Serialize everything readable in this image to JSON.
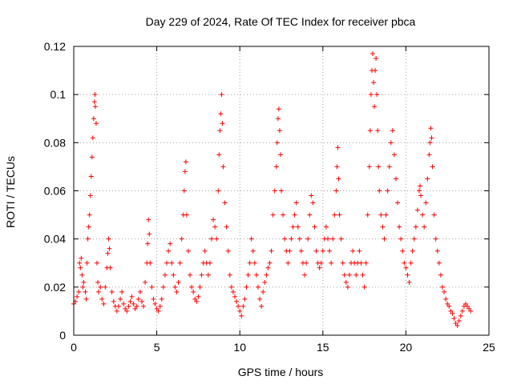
{
  "chart_data": {
    "type": "scatter",
    "title": "Day 229 of 2024, Rate Of TEC Index for receiver pbca",
    "xlabel": "GPS time / hours",
    "ylabel": "ROTI / TECUs",
    "xlim": [
      0,
      25
    ],
    "ylim": [
      0,
      0.12
    ],
    "xticks": [
      0,
      5,
      10,
      15,
      20,
      25
    ],
    "yticks": [
      0,
      0.02,
      0.04,
      0.06,
      0.08,
      0.1,
      0.12
    ],
    "xtick_labels": [
      "0",
      "5",
      "10",
      "15",
      "20",
      "25"
    ],
    "ytick_labels": [
      "0",
      "0.02",
      "0.04",
      "0.06",
      "0.08",
      "0.1",
      "0.12"
    ],
    "grid": true,
    "marker": "+",
    "color": "#ff0000",
    "series": [
      {
        "points": [
          [
            0.0,
            0.013
          ],
          [
            0.1,
            0.014
          ],
          [
            0.2,
            0.016
          ],
          [
            0.3,
            0.018
          ],
          [
            0.35,
            0.03
          ],
          [
            0.4,
            0.028
          ],
          [
            0.45,
            0.032
          ],
          [
            0.5,
            0.025
          ],
          [
            0.55,
            0.02
          ],
          [
            0.6,
            0.022
          ],
          [
            0.7,
            0.018
          ],
          [
            0.75,
            0.015
          ],
          [
            0.8,
            0.03
          ],
          [
            0.85,
            0.04
          ],
          [
            0.9,
            0.045
          ],
          [
            0.95,
            0.05
          ],
          [
            1.0,
            0.058
          ],
          [
            1.05,
            0.066
          ],
          [
            1.1,
            0.074
          ],
          [
            1.15,
            0.082
          ],
          [
            1.2,
            0.09
          ],
          [
            1.25,
            0.097
          ],
          [
            1.28,
            0.1
          ],
          [
            1.3,
            0.095
          ],
          [
            1.35,
            0.088
          ],
          [
            1.4,
            0.03
          ],
          [
            1.45,
            0.022
          ],
          [
            1.5,
            0.018
          ],
          [
            1.6,
            0.02
          ],
          [
            1.7,
            0.015
          ],
          [
            1.8,
            0.013
          ],
          [
            1.9,
            0.02
          ],
          [
            2.0,
            0.028
          ],
          [
            2.05,
            0.034
          ],
          [
            2.1,
            0.04
          ],
          [
            2.15,
            0.036
          ],
          [
            2.2,
            0.028
          ],
          [
            2.3,
            0.018
          ],
          [
            2.4,
            0.014
          ],
          [
            2.5,
            0.012
          ],
          [
            2.6,
            0.01
          ],
          [
            2.7,
            0.012
          ],
          [
            2.8,
            0.015
          ],
          [
            2.9,
            0.018
          ],
          [
            3.0,
            0.013
          ],
          [
            3.1,
            0.011
          ],
          [
            3.2,
            0.01
          ],
          [
            3.3,
            0.012
          ],
          [
            3.4,
            0.014
          ],
          [
            3.5,
            0.016
          ],
          [
            3.6,
            0.013
          ],
          [
            3.7,
            0.011
          ],
          [
            3.8,
            0.012
          ],
          [
            3.9,
            0.015
          ],
          [
            4.0,
            0.018
          ],
          [
            4.1,
            0.014
          ],
          [
            4.2,
            0.012
          ],
          [
            4.3,
            0.022
          ],
          [
            4.4,
            0.03
          ],
          [
            4.45,
            0.038
          ],
          [
            4.5,
            0.048
          ],
          [
            4.55,
            0.042
          ],
          [
            4.6,
            0.03
          ],
          [
            4.7,
            0.02
          ],
          [
            4.8,
            0.015
          ],
          [
            4.9,
            0.013
          ],
          [
            5.0,
            0.011
          ],
          [
            5.1,
            0.01
          ],
          [
            5.2,
            0.012
          ],
          [
            5.3,
            0.015
          ],
          [
            5.4,
            0.02
          ],
          [
            5.5,
            0.025
          ],
          [
            5.6,
            0.03
          ],
          [
            5.7,
            0.035
          ],
          [
            5.8,
            0.038
          ],
          [
            5.9,
            0.03
          ],
          [
            6.0,
            0.025
          ],
          [
            6.1,
            0.02
          ],
          [
            6.2,
            0.018
          ],
          [
            6.3,
            0.022
          ],
          [
            6.4,
            0.03
          ],
          [
            6.5,
            0.04
          ],
          [
            6.6,
            0.05
          ],
          [
            6.65,
            0.06
          ],
          [
            6.7,
            0.068
          ],
          [
            6.75,
            0.072
          ],
          [
            6.8,
            0.05
          ],
          [
            6.9,
            0.035
          ],
          [
            7.0,
            0.025
          ],
          [
            7.1,
            0.02
          ],
          [
            7.2,
            0.018
          ],
          [
            7.3,
            0.015
          ],
          [
            7.4,
            0.014
          ],
          [
            7.5,
            0.016
          ],
          [
            7.6,
            0.02
          ],
          [
            7.7,
            0.025
          ],
          [
            7.8,
            0.03
          ],
          [
            7.9,
            0.035
          ],
          [
            8.0,
            0.03
          ],
          [
            8.1,
            0.025
          ],
          [
            8.2,
            0.03
          ],
          [
            8.3,
            0.04
          ],
          [
            8.4,
            0.048
          ],
          [
            8.5,
            0.045
          ],
          [
            8.6,
            0.04
          ],
          [
            8.7,
            0.06
          ],
          [
            8.75,
            0.075
          ],
          [
            8.8,
            0.085
          ],
          [
            8.85,
            0.092
          ],
          [
            8.9,
            0.1
          ],
          [
            8.95,
            0.088
          ],
          [
            9.0,
            0.07
          ],
          [
            9.1,
            0.055
          ],
          [
            9.2,
            0.045
          ],
          [
            9.3,
            0.035
          ],
          [
            9.4,
            0.025
          ],
          [
            9.5,
            0.02
          ],
          [
            9.6,
            0.018
          ],
          [
            9.7,
            0.016
          ],
          [
            9.8,
            0.014
          ],
          [
            9.9,
            0.012
          ],
          [
            10.0,
            0.01
          ],
          [
            10.1,
            0.008
          ],
          [
            10.2,
            0.012
          ],
          [
            10.3,
            0.015
          ],
          [
            10.4,
            0.02
          ],
          [
            10.5,
            0.025
          ],
          [
            10.6,
            0.03
          ],
          [
            10.7,
            0.04
          ],
          [
            10.8,
            0.035
          ],
          [
            10.9,
            0.03
          ],
          [
            11.0,
            0.025
          ],
          [
            11.1,
            0.02
          ],
          [
            11.2,
            0.015
          ],
          [
            11.3,
            0.012
          ],
          [
            11.4,
            0.018
          ],
          [
            11.5,
            0.022
          ],
          [
            11.6,
            0.025
          ],
          [
            11.7,
            0.028
          ],
          [
            11.8,
            0.03
          ],
          [
            11.9,
            0.035
          ],
          [
            12.0,
            0.05
          ],
          [
            12.1,
            0.06
          ],
          [
            12.2,
            0.07
          ],
          [
            12.25,
            0.08
          ],
          [
            12.3,
            0.09
          ],
          [
            12.35,
            0.094
          ],
          [
            12.4,
            0.085
          ],
          [
            12.45,
            0.075
          ],
          [
            12.5,
            0.06
          ],
          [
            12.6,
            0.05
          ],
          [
            12.7,
            0.04
          ],
          [
            12.8,
            0.035
          ],
          [
            12.9,
            0.03
          ],
          [
            13.0,
            0.035
          ],
          [
            13.1,
            0.04
          ],
          [
            13.2,
            0.045
          ],
          [
            13.3,
            0.05
          ],
          [
            13.4,
            0.055
          ],
          [
            13.5,
            0.045
          ],
          [
            13.6,
            0.04
          ],
          [
            13.7,
            0.035
          ],
          [
            13.8,
            0.03
          ],
          [
            13.9,
            0.025
          ],
          [
            14.0,
            0.03
          ],
          [
            14.1,
            0.04
          ],
          [
            14.2,
            0.05
          ],
          [
            14.3,
            0.058
          ],
          [
            14.4,
            0.055
          ],
          [
            14.5,
            0.045
          ],
          [
            14.6,
            0.035
          ],
          [
            14.7,
            0.03
          ],
          [
            14.8,
            0.028
          ],
          [
            14.9,
            0.03
          ],
          [
            15.0,
            0.035
          ],
          [
            15.1,
            0.04
          ],
          [
            15.2,
            0.045
          ],
          [
            15.3,
            0.04
          ],
          [
            15.4,
            0.035
          ],
          [
            15.5,
            0.03
          ],
          [
            15.6,
            0.04
          ],
          [
            15.7,
            0.05
          ],
          [
            15.8,
            0.06
          ],
          [
            15.85,
            0.07
          ],
          [
            15.9,
            0.078
          ],
          [
            15.95,
            0.065
          ],
          [
            16.0,
            0.05
          ],
          [
            16.1,
            0.04
          ],
          [
            16.2,
            0.03
          ],
          [
            16.3,
            0.025
          ],
          [
            16.4,
            0.022
          ],
          [
            16.5,
            0.02
          ],
          [
            16.6,
            0.025
          ],
          [
            16.7,
            0.03
          ],
          [
            16.8,
            0.035
          ],
          [
            16.9,
            0.03
          ],
          [
            17.0,
            0.025
          ],
          [
            17.1,
            0.03
          ],
          [
            17.2,
            0.035
          ],
          [
            17.3,
            0.03
          ],
          [
            17.4,
            0.025
          ],
          [
            17.5,
            0.02
          ],
          [
            17.6,
            0.03
          ],
          [
            17.7,
            0.05
          ],
          [
            17.8,
            0.07
          ],
          [
            17.85,
            0.085
          ],
          [
            17.9,
            0.1
          ],
          [
            17.95,
            0.11
          ],
          [
            18.0,
            0.117
          ],
          [
            18.05,
            0.105
          ],
          [
            18.1,
            0.095
          ],
          [
            18.15,
            0.11
          ],
          [
            18.2,
            0.115
          ],
          [
            18.25,
            0.1
          ],
          [
            18.3,
            0.085
          ],
          [
            18.35,
            0.07
          ],
          [
            18.4,
            0.06
          ],
          [
            18.5,
            0.05
          ],
          [
            18.6,
            0.045
          ],
          [
            18.7,
            0.04
          ],
          [
            18.8,
            0.05
          ],
          [
            18.9,
            0.06
          ],
          [
            19.0,
            0.07
          ],
          [
            19.1,
            0.08
          ],
          [
            19.2,
            0.085
          ],
          [
            19.3,
            0.075
          ],
          [
            19.4,
            0.065
          ],
          [
            19.5,
            0.055
          ],
          [
            19.6,
            0.045
          ],
          [
            19.7,
            0.04
          ],
          [
            19.8,
            0.035
          ],
          [
            19.9,
            0.03
          ],
          [
            20.0,
            0.028
          ],
          [
            20.1,
            0.025
          ],
          [
            20.2,
            0.022
          ],
          [
            20.3,
            0.03
          ],
          [
            20.4,
            0.035
          ],
          [
            20.5,
            0.04
          ],
          [
            20.6,
            0.045
          ],
          [
            20.7,
            0.052
          ],
          [
            20.8,
            0.06
          ],
          [
            20.85,
            0.062
          ],
          [
            20.9,
            0.058
          ],
          [
            21.0,
            0.05
          ],
          [
            21.1,
            0.045
          ],
          [
            21.2,
            0.055
          ],
          [
            21.3,
            0.065
          ],
          [
            21.4,
            0.075
          ],
          [
            21.45,
            0.08
          ],
          [
            21.5,
            0.086
          ],
          [
            21.55,
            0.082
          ],
          [
            21.6,
            0.07
          ],
          [
            21.7,
            0.05
          ],
          [
            21.8,
            0.04
          ],
          [
            21.9,
            0.035
          ],
          [
            22.0,
            0.03
          ],
          [
            22.1,
            0.025
          ],
          [
            22.2,
            0.02
          ],
          [
            22.3,
            0.018
          ],
          [
            22.4,
            0.015
          ],
          [
            22.5,
            0.013
          ],
          [
            22.6,
            0.012
          ],
          [
            22.7,
            0.01
          ],
          [
            22.8,
            0.009
          ],
          [
            22.9,
            0.007
          ],
          [
            23.0,
            0.005
          ],
          [
            23.1,
            0.004
          ],
          [
            23.2,
            0.006
          ],
          [
            23.3,
            0.008
          ],
          [
            23.4,
            0.01
          ],
          [
            23.5,
            0.012
          ],
          [
            23.6,
            0.013
          ],
          [
            23.7,
            0.012
          ],
          [
            23.8,
            0.011
          ],
          [
            23.9,
            0.01
          ]
        ]
      }
    ]
  }
}
